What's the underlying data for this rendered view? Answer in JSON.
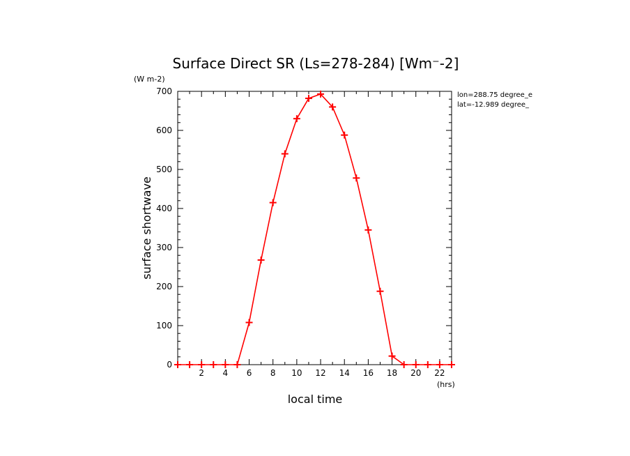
{
  "chart_data": {
    "type": "line",
    "title": "Surface Direct SR (Ls=278-284) [Wm⁻-2]",
    "ylabel": "surface shortwave",
    "yunit": "(W m-2)",
    "xlabel": "local time",
    "xunit": "(hrs)",
    "annotations": [
      "lon=288.75 degree_e",
      "lat=-12.989 degree_"
    ],
    "xlim": [
      0,
      23
    ],
    "ylim": [
      0,
      700
    ],
    "x_ticks": [
      2,
      4,
      6,
      8,
      10,
      12,
      14,
      16,
      18,
      20,
      22
    ],
    "y_ticks": [
      0,
      100,
      200,
      300,
      400,
      500,
      600,
      700
    ],
    "grid": false,
    "line_color": "#ff0000",
    "marker": "plus",
    "x": [
      0,
      1,
      2,
      3,
      4,
      5,
      6,
      7,
      8,
      9,
      10,
      11,
      12,
      13,
      14,
      15,
      16,
      17,
      18,
      19,
      20,
      21,
      22,
      23
    ],
    "series": [
      {
        "values": [
          0,
          0,
          0,
          0,
          0,
          0,
          108,
          268,
          415,
          540,
          630,
          682,
          693,
          660,
          588,
          478,
          345,
          188,
          22,
          0,
          0,
          0,
          0,
          0
        ]
      }
    ]
  }
}
